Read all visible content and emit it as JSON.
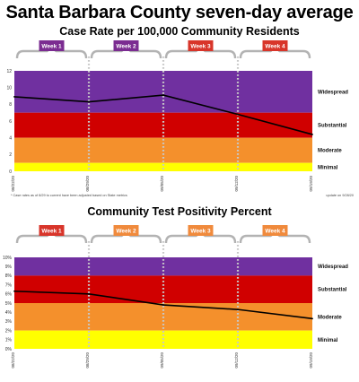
{
  "header": {
    "title": "Santa Barbara County seven-day average"
  },
  "chart_data": [
    {
      "type": "line",
      "title": "Case Rate per 100,000 Community Residents",
      "ylim": [
        0,
        12
      ],
      "yticks": [
        "0",
        "2",
        "4",
        "6",
        "8",
        "10",
        "12"
      ],
      "x": [
        "08/22/20",
        "08/29/20",
        "09/05/20",
        "09/12/20",
        "09/19/20"
      ],
      "series": [
        {
          "values": [
            8.9,
            8.3,
            9.1,
            6.8,
            4.4
          ]
        }
      ],
      "weeks": [
        "Week 1",
        "Week 2",
        "Week 3",
        "Week 4"
      ],
      "week_colors": [
        "#7b2c91",
        "#7b2c91",
        "#d8352a",
        "#d8352a"
      ],
      "zones": [
        {
          "label": "Widespread",
          "from": 7,
          "to": 12,
          "color": "#7030a0"
        },
        {
          "label": "Substantial",
          "from": 4,
          "to": 7,
          "color": "#d00000"
        },
        {
          "label": "Moderate",
          "from": 1,
          "to": 4,
          "color": "#f4902c"
        },
        {
          "label": "Minimal",
          "from": 0,
          "to": 1,
          "color": "#ffff00"
        }
      ],
      "footnote_left": "* Case rates as of 8/29 to current have been adjusted based on State metrics",
      "footnote_right": "update on 9/28/20",
      "grid": false
    },
    {
      "type": "line",
      "title": "Community Test Positivity Percent",
      "ylim": [
        0,
        10
      ],
      "yticks": [
        "0%",
        "1%",
        "2%",
        "3%",
        "4%",
        "5%",
        "6%",
        "7%",
        "8%",
        "9%",
        "10%"
      ],
      "x": [
        "08/22/20",
        "08/29/20",
        "09/05/20",
        "09/12/20",
        "09/19/20"
      ],
      "series": [
        {
          "values": [
            6.3,
            6.0,
            4.8,
            4.3,
            3.3
          ]
        }
      ],
      "weeks": [
        "Week 1",
        "Week 2",
        "Week 3",
        "Week 4"
      ],
      "week_colors": [
        "#d8352a",
        "#f08a3c",
        "#f08a3c",
        "#f08a3c"
      ],
      "zones": [
        {
          "label": "Widespread",
          "from": 8,
          "to": 10,
          "color": "#7030a0"
        },
        {
          "label": "Substantial",
          "from": 5,
          "to": 8,
          "color": "#d00000"
        },
        {
          "label": "Moderate",
          "from": 2,
          "to": 5,
          "color": "#f4902c"
        },
        {
          "label": "Minimal",
          "from": 0,
          "to": 2,
          "color": "#ffff00"
        }
      ],
      "grid": false
    }
  ]
}
